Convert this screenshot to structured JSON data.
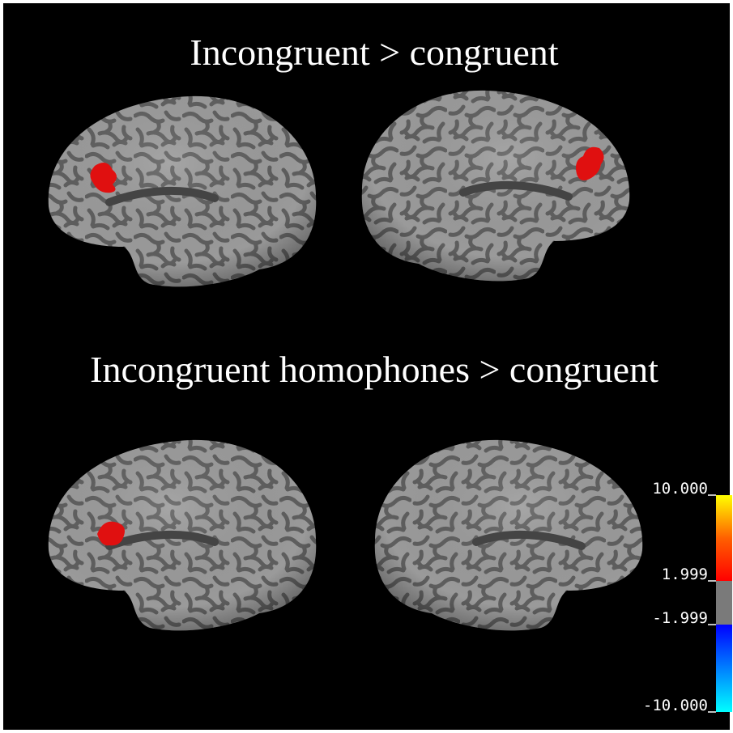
{
  "panels": [
    {
      "title": "Incongruent > congruent"
    },
    {
      "title": "Incongruent homophones > congruent"
    }
  ],
  "colorbar": {
    "labels": [
      "10.000",
      "1.999",
      "-1.999",
      "-10.000"
    ]
  }
}
